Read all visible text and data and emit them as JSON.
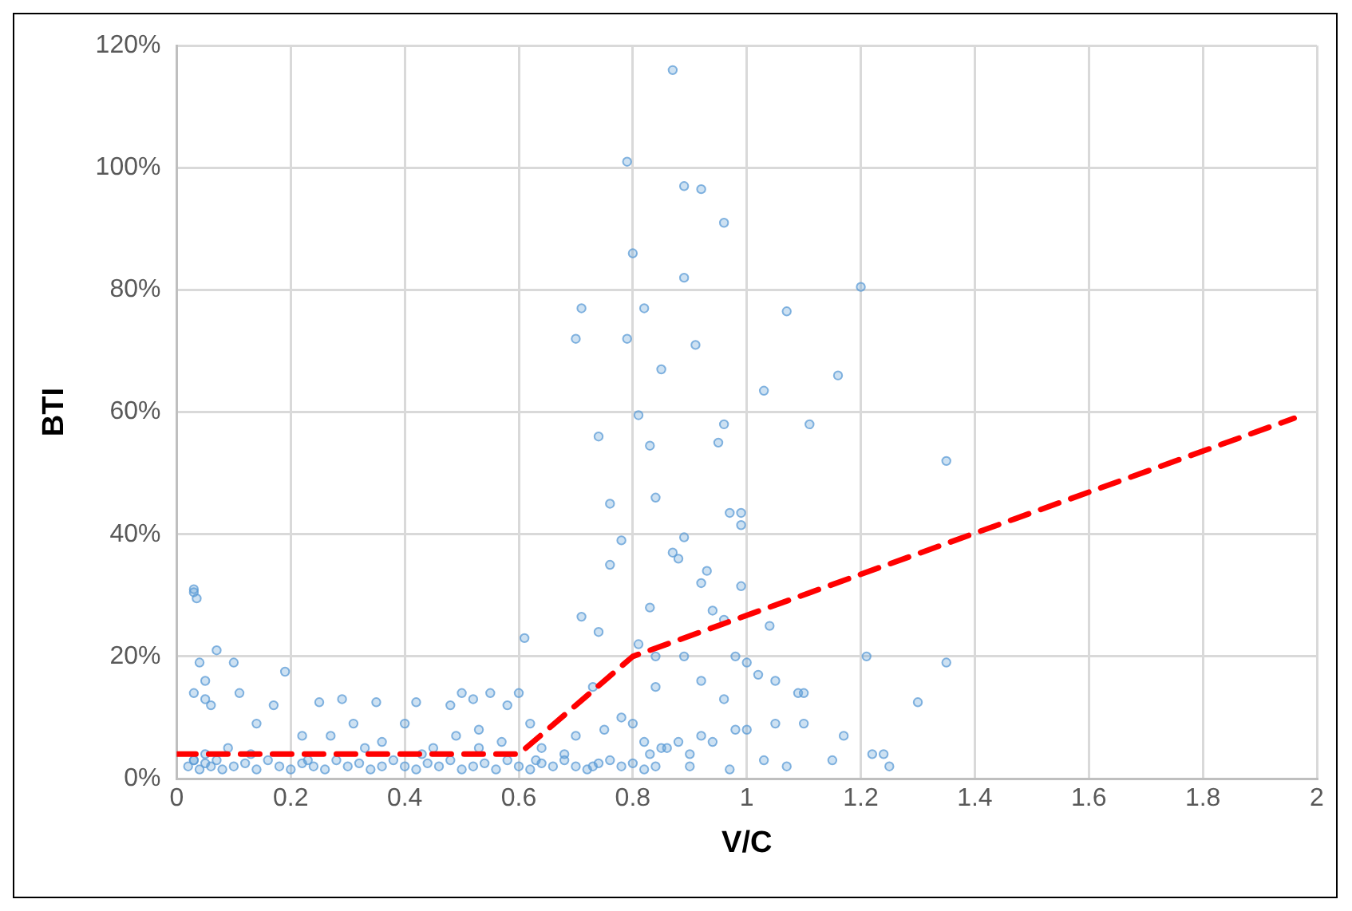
{
  "chart_data": {
    "type": "scatter",
    "xlabel": "V/C",
    "ylabel": "BTI",
    "xlim": [
      0,
      2
    ],
    "xticks": [
      0,
      0.2,
      0.4,
      0.6,
      0.8,
      1,
      1.2,
      1.4,
      1.6,
      1.8,
      2
    ],
    "ylim": [
      0,
      120
    ],
    "yticks": [
      {
        "value": 0,
        "label": "0%"
      },
      {
        "value": 20,
        "label": "20%"
      },
      {
        "value": 40,
        "label": "40%"
      },
      {
        "value": 60,
        "label": "60%"
      },
      {
        "value": 80,
        "label": "80%"
      },
      {
        "value": 100,
        "label": "100%"
      },
      {
        "value": 120,
        "label": "120%"
      }
    ],
    "grid": true,
    "legend": false,
    "series": [
      {
        "color": "#5b9bd5",
        "marker": "circle",
        "x": [
          0.87,
          0.79,
          0.89,
          0.92,
          0.96,
          0.8,
          0.89,
          1.2,
          0.82,
          0.71,
          1.07,
          0.7,
          0.79,
          0.91,
          0.85,
          1.16,
          1.03,
          0.81,
          0.96,
          1.11,
          0.74,
          0.83,
          0.95,
          1.35,
          0.84,
          0.76,
          0.97,
          0.99,
          0.99,
          0.78,
          0.89,
          0.88,
          0.87,
          0.76,
          0.93,
          0.92,
          0.99,
          0.94,
          0.71,
          0.96,
          0.83,
          1.04,
          0.61,
          0.81,
          0.74,
          0.84,
          0.89,
          0.98,
          1.0,
          1.21,
          1.35,
          1.02,
          1.05,
          1.09,
          1.1,
          0.92,
          0.96,
          0.84,
          0.73,
          1.3,
          1.17,
          1.1,
          1.05,
          1.0,
          0.98,
          1.03,
          1.07,
          1.15,
          1.22,
          1.25,
          1.24,
          0.97,
          0.9,
          0.03,
          0.035,
          0.03,
          0.07,
          0.04,
          0.1,
          0.19,
          0.05,
          0.03,
          0.05,
          0.06,
          0.11,
          0.14,
          0.17,
          0.25,
          0.29,
          0.35,
          0.42,
          0.48,
          0.5,
          0.52,
          0.55,
          0.58,
          0.6,
          0.62,
          0.22,
          0.27,
          0.31,
          0.36,
          0.4,
          0.45,
          0.49,
          0.53,
          0.57,
          0.64,
          0.68,
          0.7,
          0.75,
          0.78,
          0.8,
          0.82,
          0.85,
          0.88,
          0.92,
          0.02,
          0.03,
          0.04,
          0.05,
          0.06,
          0.07,
          0.08,
          0.1,
          0.12,
          0.14,
          0.16,
          0.18,
          0.2,
          0.22,
          0.24,
          0.26,
          0.28,
          0.3,
          0.32,
          0.34,
          0.36,
          0.38,
          0.4,
          0.42,
          0.44,
          0.46,
          0.48,
          0.5,
          0.52,
          0.54,
          0.56,
          0.58,
          0.6,
          0.62,
          0.64,
          0.66,
          0.68,
          0.7,
          0.72,
          0.74,
          0.76,
          0.78,
          0.8,
          0.82,
          0.84,
          0.86,
          0.9,
          0.94,
          0.03,
          0.05,
          0.09,
          0.13,
          0.23,
          0.33,
          0.43,
          0.53,
          0.63,
          0.73,
          0.83
        ],
        "values": [
          116,
          101,
          97,
          96.5,
          91,
          86,
          82,
          80.5,
          77,
          77,
          76.5,
          72,
          72,
          71,
          67,
          66,
          63.5,
          59.5,
          58,
          58,
          56,
          54.5,
          55,
          52,
          46,
          45,
          43.5,
          43.5,
          41.5,
          39,
          39.5,
          36,
          37,
          35,
          34,
          32,
          31.5,
          27.5,
          26.5,
          26,
          28,
          25,
          23,
          22,
          24,
          20,
          20,
          20,
          19,
          20,
          19,
          17,
          16,
          14,
          14,
          16,
          13,
          15,
          15,
          12.5,
          7,
          9,
          9,
          8,
          8,
          3,
          2,
          3,
          4,
          2,
          4,
          1.5,
          2,
          31,
          29.5,
          30.5,
          21,
          19,
          19,
          17.5,
          16,
          14,
          13,
          12,
          14,
          9,
          12,
          12.5,
          13,
          12.5,
          12.5,
          12,
          14,
          13,
          14,
          12,
          14,
          9,
          7,
          7,
          9,
          6,
          9,
          5,
          7,
          8,
          6,
          5,
          4,
          7,
          8,
          10,
          9,
          6,
          5,
          6,
          7,
          2,
          3,
          1.5,
          2.5,
          2,
          3,
          1.5,
          2,
          2.5,
          1.5,
          3,
          2,
          1.5,
          2.5,
          2,
          1.5,
          3,
          2,
          2.5,
          1.5,
          2,
          3,
          2,
          1.5,
          2.5,
          2,
          3,
          1.5,
          2,
          2.5,
          1.5,
          3,
          2,
          1.5,
          2.5,
          2,
          3,
          2,
          1.5,
          2.5,
          3,
          2,
          2.5,
          1.5,
          2,
          5,
          4,
          6,
          3,
          4,
          5,
          4,
          3,
          5,
          4,
          5,
          3,
          2,
          4
        ]
      },
      {
        "type": "line",
        "color": "#ff0000",
        "marker": "none",
        "line_style": "dashed",
        "x": [
          0,
          0.6,
          0.8,
          1.96
        ],
        "values": [
          4,
          4,
          20,
          59
        ]
      }
    ]
  }
}
